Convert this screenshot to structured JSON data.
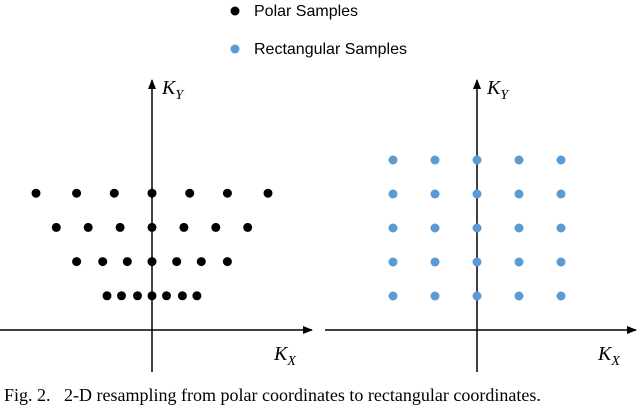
{
  "legend": {
    "polar_label": "Polar Samples",
    "rectangular_label": "Rectangular Samples"
  },
  "colors": {
    "polar": "#000000",
    "rectangular": "#5b9bd5",
    "axis": "#000000"
  },
  "axes": {
    "y_main": "K",
    "y_sub": "Y",
    "x_main": "K",
    "x_sub": "X"
  },
  "caption": "Fig. 2.   2-D resampling from polar coordinates to rectangular coordinates.",
  "diagram": {
    "polar_samples": [
      [
        -4,
        4.8
      ],
      [
        -2.6,
        4.8
      ],
      [
        -1.3,
        4.8
      ],
      [
        0,
        4.8
      ],
      [
        1.3,
        4.8
      ],
      [
        2.6,
        4.8
      ],
      [
        4,
        4.8
      ],
      [
        -3.3,
        3.6
      ],
      [
        -2.2,
        3.6
      ],
      [
        -1.1,
        3.6
      ],
      [
        0,
        3.6
      ],
      [
        1.1,
        3.6
      ],
      [
        2.2,
        3.6
      ],
      [
        3.3,
        3.6
      ],
      [
        -2.6,
        2.4
      ],
      [
        -1.7,
        2.4
      ],
      [
        -0.85,
        2.4
      ],
      [
        0,
        2.4
      ],
      [
        0.85,
        2.4
      ],
      [
        1.7,
        2.4
      ],
      [
        2.6,
        2.4
      ],
      [
        -1.55,
        1.2
      ],
      [
        -1.05,
        1.2
      ],
      [
        -0.5,
        1.2
      ],
      [
        0,
        1.2
      ],
      [
        0.5,
        1.2
      ],
      [
        1.05,
        1.2
      ],
      [
        1.55,
        1.2
      ]
    ],
    "rectangular_grid": {
      "x": [
        -2,
        -1,
        0,
        1,
        2
      ],
      "y": [
        1,
        2,
        3,
        4,
        5
      ]
    }
  }
}
